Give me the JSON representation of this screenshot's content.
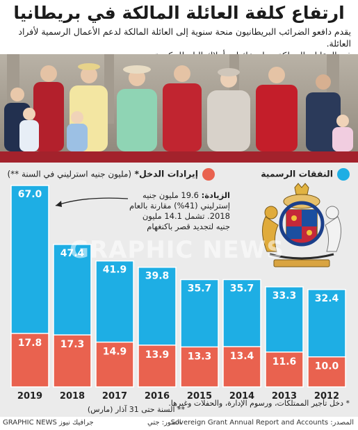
{
  "title": "ارتفاع كلفة العائلة المالكة في بريطانيا",
  "subtitle": {
    "line1": "يقدم دافعو الضرائب البريطانيون منحة سنوية إلى العائلة المالكة لدعم الأعمال الرسمية لأفراد العائلة.",
    "line2": "في المقابل، المملكة تسلم عائدات أملاك التاج للحكومة"
  },
  "legend": {
    "expenditure": "النفقات الرسمية",
    "income": "إيرادات الدخل*",
    "income_note": "(مليون جنيه استرليني في السنة **)"
  },
  "annotation": {
    "bold": "الزيادة:",
    "text": "19.6 مليون جنيه إسترليني (41%) مقارنة بالعام 2018. تشمل 14.1 مليون جنيه لتجديد قصر باكنغهام"
  },
  "footnotes": {
    "income": "* دخل تأجير الممتلكات، ورسوم الإدارة، والحفلات وغيرها.",
    "year": "** السنة حتى 31 آذار (مارس)"
  },
  "footer": {
    "source": "المصدر: Sovereign Grant Annual Report and Accounts",
    "photo": "الصور: جتي",
    "brand": "GRAPHIC NEWS جرافيك نيوز"
  },
  "watermark": "GRAPHIC NEWS",
  "colors": {
    "expenditure": "#1eaee4",
    "income": "#e9624f",
    "panel": "#ebebeb"
  },
  "chart_data": {
    "type": "bar",
    "categories": [
      "2019",
      "2018",
      "2017",
      "2016",
      "2015",
      "2014",
      "2013",
      "2012"
    ],
    "series": [
      {
        "name": "النفقات الرسمية",
        "values": [
          67.0,
          47.4,
          41.9,
          39.8,
          35.7,
          35.7,
          33.3,
          32.4
        ]
      },
      {
        "name": "إيرادات الدخل*",
        "values": [
          17.8,
          17.3,
          14.9,
          13.9,
          13.3,
          13.4,
          11.6,
          10.0
        ]
      }
    ],
    "title": "",
    "ylim": [
      0,
      67
    ],
    "grid": false,
    "legend": "top"
  }
}
